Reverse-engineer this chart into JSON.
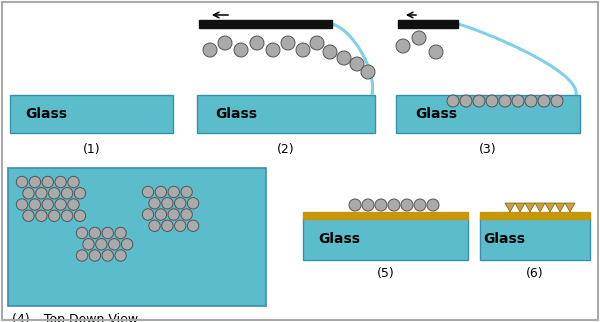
{
  "background_color": "#ffffff",
  "glass_color": "#5bbccc",
  "glass_border_color": "#3a8fa8",
  "blade_color": "#111111",
  "sphere_color": "#aaaaaa",
  "sphere_edge_color": "#555555",
  "gold_color": "#c8960a",
  "nano_color": "#c8a040",
  "meniscus_color": "#80d0e8",
  "outer_border_color": "#aaaaaa",
  "panel_labels": [
    "(1)",
    "(2)",
    "(3)",
    "(5)",
    "(6)"
  ],
  "panel4_label": "(4) – Top Down View",
  "glass_label": "Glass",
  "label_fontsize": 9,
  "glass_fontsize": 10,
  "figwidth": 6.0,
  "figheight": 3.22,
  "dpi": 100
}
